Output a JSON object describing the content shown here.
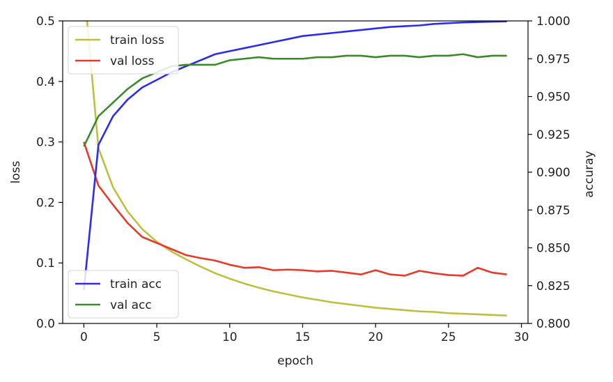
{
  "chart_data": {
    "type": "line",
    "xlabel": "epoch",
    "ylabel_left": "loss",
    "ylabel_right": "accuray",
    "xlim": [
      -1.45,
      30.45
    ],
    "ylim_left": [
      0,
      0.5
    ],
    "ylim_right": [
      0.8,
      1.0
    ],
    "x_ticks": [
      0,
      5,
      10,
      15,
      20,
      25,
      30
    ],
    "y_left_ticks": [
      "0.0",
      "0.1",
      "0.2",
      "0.3",
      "0.4",
      "0.5"
    ],
    "y_right_ticks": [
      "0.800",
      "0.825",
      "0.850",
      "0.875",
      "0.900",
      "0.925",
      "0.950",
      "0.975",
      "1.000"
    ],
    "grid": false,
    "x": [
      0,
      1,
      2,
      3,
      4,
      5,
      6,
      7,
      8,
      9,
      10,
      11,
      12,
      13,
      14,
      15,
      16,
      17,
      18,
      19,
      20,
      21,
      22,
      23,
      24,
      25,
      26,
      27,
      28,
      29
    ],
    "series": [
      {
        "name": "train loss",
        "axis": "left",
        "color": "#bfbf3f",
        "values": [
          0.56,
          0.29,
          0.225,
          0.185,
          0.156,
          0.135,
          0.119,
          0.106,
          0.094,
          0.083,
          0.074,
          0.066,
          0.059,
          0.053,
          0.048,
          0.043,
          0.039,
          0.035,
          0.032,
          0.029,
          0.026,
          0.024,
          0.022,
          0.02,
          0.019,
          0.017,
          0.016,
          0.015,
          0.014,
          0.013
        ]
      },
      {
        "name": "val loss",
        "axis": "left",
        "color": "#e8392b",
        "values": [
          0.3,
          0.228,
          0.196,
          0.166,
          0.143,
          0.133,
          0.123,
          0.113,
          0.108,
          0.104,
          0.097,
          0.092,
          0.093,
          0.088,
          0.089,
          0.088,
          0.086,
          0.087,
          0.084,
          0.081,
          0.088,
          0.081,
          0.079,
          0.087,
          0.083,
          0.08,
          0.079,
          0.092,
          0.084,
          0.081
        ]
      },
      {
        "name": "train acc",
        "axis": "right",
        "color": "#2b2bf5",
        "values": [
          0.822,
          0.918,
          0.937,
          0.948,
          0.956,
          0.961,
          0.966,
          0.97,
          0.974,
          0.978,
          0.98,
          0.982,
          0.984,
          0.986,
          0.988,
          0.99,
          0.991,
          0.992,
          0.993,
          0.994,
          0.995,
          0.996,
          0.9965,
          0.997,
          0.998,
          0.9985,
          0.999,
          0.9993,
          0.9995,
          0.9997
        ]
      },
      {
        "name": "val acc",
        "axis": "right",
        "color": "#3a8a2a",
        "values": [
          0.917,
          0.937,
          0.946,
          0.955,
          0.962,
          0.966,
          0.97,
          0.971,
          0.971,
          0.971,
          0.974,
          0.975,
          0.976,
          0.975,
          0.975,
          0.975,
          0.976,
          0.976,
          0.977,
          0.977,
          0.976,
          0.977,
          0.977,
          0.976,
          0.977,
          0.977,
          0.978,
          0.976,
          0.977,
          0.977
        ]
      }
    ],
    "legends": [
      {
        "position": "upper-left",
        "entries": [
          "train loss",
          "val loss"
        ]
      },
      {
        "position": "lower-left",
        "entries": [
          "train acc",
          "val acc"
        ]
      }
    ]
  }
}
